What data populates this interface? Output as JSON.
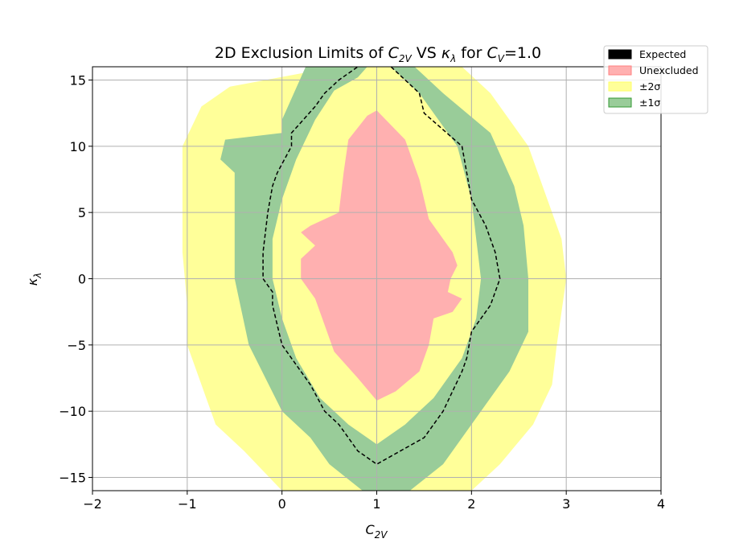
{
  "chart_data": {
    "type": "area",
    "title": {
      "prefix": "2D Exclusion Limits of ",
      "var1": "C",
      "var1_sub": "2V",
      "middle": " VS ",
      "var2": "κ",
      "var2_sub": "λ",
      "suffix1": " for ",
      "var3": "C",
      "var3_sub": "V",
      "suffix2": "=1.0"
    },
    "xlabel": {
      "base": "C",
      "sub": "2V"
    },
    "ylabel": {
      "base": "κ",
      "sub": "λ"
    },
    "xlim": [
      -2,
      4
    ],
    "ylim": [
      -16,
      16
    ],
    "xticks": [
      -2,
      -1,
      0,
      1,
      2,
      3,
      4
    ],
    "yticks": [
      -15,
      -10,
      -5,
      0,
      5,
      10,
      15
    ],
    "xtick_labels": [
      "−2",
      "−1",
      "0",
      "1",
      "2",
      "3",
      "4"
    ],
    "ytick_labels": [
      "−15",
      "−10",
      "−5",
      "0",
      "5",
      "10",
      "15"
    ],
    "grid": true,
    "legend_position": "top-right",
    "legend": [
      {
        "label": "Expected",
        "color": "#000000"
      },
      {
        "label": "Unexcluded",
        "color": "#ffb0b0"
      },
      {
        "label": "±2σ",
        "color": "#ffff99"
      },
      {
        "label": "±1σ",
        "color": "#99cc99"
      }
    ],
    "regions": {
      "pm2sigma": {
        "color": "#ffff99",
        "points": [
          [
            0.7,
            16
          ],
          [
            1.9,
            16
          ],
          [
            2.2,
            14
          ],
          [
            2.6,
            10
          ],
          [
            2.8,
            6
          ],
          [
            2.95,
            3
          ],
          [
            3.0,
            0
          ],
          [
            2.9,
            -5
          ],
          [
            2.85,
            -8
          ],
          [
            2.65,
            -11
          ],
          [
            2.3,
            -14
          ],
          [
            2.0,
            -16
          ],
          [
            0.0,
            -16
          ],
          [
            -0.4,
            -13
          ],
          [
            -0.7,
            -11
          ],
          [
            -0.85,
            -8
          ],
          [
            -1.0,
            -5
          ],
          [
            -1.0,
            -2
          ],
          [
            -1.05,
            2
          ],
          [
            -1.05,
            6
          ],
          [
            -1.05,
            10
          ],
          [
            -0.85,
            13
          ],
          [
            -0.55,
            14.5
          ],
          [
            0.2,
            15.5
          ]
        ]
      },
      "pm1sigma": {
        "color": "#99cc99",
        "points": [
          [
            0.25,
            16
          ],
          [
            1.4,
            16
          ],
          [
            1.7,
            14
          ],
          [
            2.2,
            11
          ],
          [
            2.45,
            7
          ],
          [
            2.55,
            4
          ],
          [
            2.6,
            0
          ],
          [
            2.6,
            -4
          ],
          [
            2.4,
            -7
          ],
          [
            2.0,
            -11
          ],
          [
            1.7,
            -14
          ],
          [
            1.35,
            -16
          ],
          [
            0.85,
            -16
          ],
          [
            0.5,
            -14
          ],
          [
            0.3,
            -12
          ],
          [
            0.0,
            -10
          ],
          [
            -0.35,
            -5
          ],
          [
            -0.5,
            0
          ],
          [
            -0.5,
            4
          ],
          [
            -0.5,
            8
          ],
          [
            -0.65,
            9
          ],
          [
            -0.6,
            10.5
          ],
          [
            0.0,
            11
          ],
          [
            0.0,
            12
          ]
        ]
      },
      "inner2sigma": {
        "color": "#ffff99",
        "points": [
          [
            0.9,
            16
          ],
          [
            1.15,
            16
          ],
          [
            1.45,
            14
          ],
          [
            1.85,
            10
          ],
          [
            2.0,
            6
          ],
          [
            2.05,
            3
          ],
          [
            2.1,
            0
          ],
          [
            2.05,
            -3
          ],
          [
            1.9,
            -6
          ],
          [
            1.6,
            -9
          ],
          [
            1.3,
            -11
          ],
          [
            1.0,
            -12.5
          ],
          [
            0.7,
            -11
          ],
          [
            0.4,
            -9
          ],
          [
            0.15,
            -6
          ],
          [
            0.0,
            -3
          ],
          [
            -0.1,
            0
          ],
          [
            -0.1,
            3
          ],
          [
            0.0,
            6
          ],
          [
            0.15,
            9
          ],
          [
            0.35,
            12
          ],
          [
            0.55,
            14.2
          ],
          [
            0.8,
            15.2
          ]
        ]
      },
      "unexcluded": {
        "color": "#ffb0b0",
        "points": [
          [
            1.0,
            12.7
          ],
          [
            1.3,
            10.5
          ],
          [
            1.45,
            7.5
          ],
          [
            1.55,
            4.5
          ],
          [
            1.8,
            2
          ],
          [
            1.85,
            1
          ],
          [
            1.78,
            0
          ],
          [
            1.75,
            -1
          ],
          [
            1.9,
            -1.5
          ],
          [
            1.8,
            -2.5
          ],
          [
            1.6,
            -3
          ],
          [
            1.55,
            -5
          ],
          [
            1.45,
            -7
          ],
          [
            1.2,
            -8.5
          ],
          [
            1.0,
            -9.2
          ],
          [
            0.8,
            -7.5
          ],
          [
            0.55,
            -5.5
          ],
          [
            0.45,
            -3.5
          ],
          [
            0.35,
            -1.5
          ],
          [
            0.2,
            0
          ],
          [
            0.2,
            1.5
          ],
          [
            0.35,
            2.5
          ],
          [
            0.2,
            3.5
          ],
          [
            0.3,
            4
          ],
          [
            0.6,
            5
          ],
          [
            0.65,
            8
          ],
          [
            0.7,
            10.5
          ],
          [
            0.9,
            12.3
          ]
        ]
      }
    },
    "expected_contour": {
      "color": "#000000",
      "points": [
        [
          0.95,
          16.2
        ],
        [
          1.15,
          16
        ],
        [
          1.45,
          14
        ],
        [
          1.5,
          12.5
        ],
        [
          1.9,
          10
        ],
        [
          2.0,
          6
        ],
        [
          2.15,
          4
        ],
        [
          2.25,
          2
        ],
        [
          2.3,
          0
        ],
        [
          2.2,
          -2
        ],
        [
          2.1,
          -3
        ],
        [
          2.0,
          -4
        ],
        [
          1.95,
          -6
        ],
        [
          1.9,
          -7
        ],
        [
          1.7,
          -10
        ],
        [
          1.5,
          -12
        ],
        [
          1.0,
          -14
        ],
        [
          0.8,
          -13
        ],
        [
          0.6,
          -11
        ],
        [
          0.45,
          -10
        ],
        [
          0.3,
          -8
        ],
        [
          0.0,
          -5
        ],
        [
          -0.1,
          -2
        ],
        [
          -0.1,
          -1
        ],
        [
          -0.2,
          0
        ],
        [
          -0.2,
          2
        ],
        [
          -0.15,
          5
        ],
        [
          -0.1,
          7
        ],
        [
          -0.05,
          8
        ],
        [
          0.1,
          10
        ],
        [
          0.1,
          11
        ],
        [
          0.35,
          13
        ],
        [
          0.45,
          14
        ],
        [
          0.6,
          15
        ],
        [
          0.8,
          16
        ]
      ]
    }
  }
}
